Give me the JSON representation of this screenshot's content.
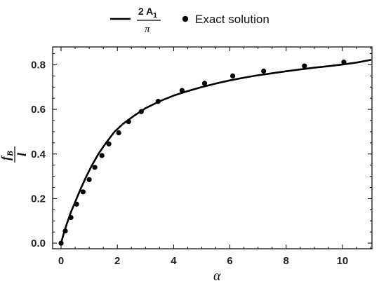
{
  "chart_data": {
    "type": "line",
    "xlabel": "α",
    "ylabel": {
      "numerator": "f",
      "numerator_sub": "B",
      "denominator": "l"
    },
    "xlim": [
      -0.3,
      11.05
    ],
    "ylim": [
      -0.025,
      0.88
    ],
    "x_ticks": [
      "0",
      "2",
      "4",
      "6",
      "8",
      "10"
    ],
    "y_ticks": [
      "0.0",
      "0.2",
      "0.4",
      "0.6",
      "0.8"
    ],
    "legend_position": "top-center",
    "grid": false,
    "series": [
      {
        "name": "2 A1 / π",
        "legend_numerator": "2 A",
        "legend_numerator_sub": "1",
        "legend_denominator": "π",
        "style": "line",
        "color": "#000000",
        "x": [
          0,
          0.1,
          0.2,
          0.35,
          0.5,
          0.7,
          0.9,
          1.1,
          1.35,
          1.6,
          1.9,
          2.2,
          2.6,
          3.0,
          3.5,
          4.0,
          4.5,
          5.0,
          5.5,
          6.0,
          6.5,
          7.0,
          7.5,
          8.0,
          8.5,
          9.0,
          9.5,
          10.0,
          10.5,
          11.0
        ],
        "y": [
          0.0,
          0.045,
          0.085,
          0.14,
          0.185,
          0.245,
          0.3,
          0.35,
          0.405,
          0.45,
          0.5,
          0.535,
          0.572,
          0.605,
          0.636,
          0.662,
          0.682,
          0.7,
          0.716,
          0.73,
          0.742,
          0.753,
          0.762,
          0.771,
          0.779,
          0.787,
          0.794,
          0.801,
          0.81,
          0.822
        ]
      },
      {
        "name": "Exact solution",
        "style": "scatter",
        "color": "#000000",
        "x": [
          0.0,
          0.15,
          0.35,
          0.55,
          0.78,
          1.0,
          1.2,
          1.45,
          1.7,
          2.05,
          2.4,
          2.85,
          3.45,
          4.3,
          5.1,
          6.1,
          7.2,
          8.65,
          10.05
        ],
        "y": [
          0.0,
          0.055,
          0.115,
          0.175,
          0.23,
          0.285,
          0.34,
          0.393,
          0.445,
          0.495,
          0.545,
          0.59,
          0.636,
          0.685,
          0.717,
          0.75,
          0.772,
          0.795,
          0.812
        ]
      }
    ]
  }
}
